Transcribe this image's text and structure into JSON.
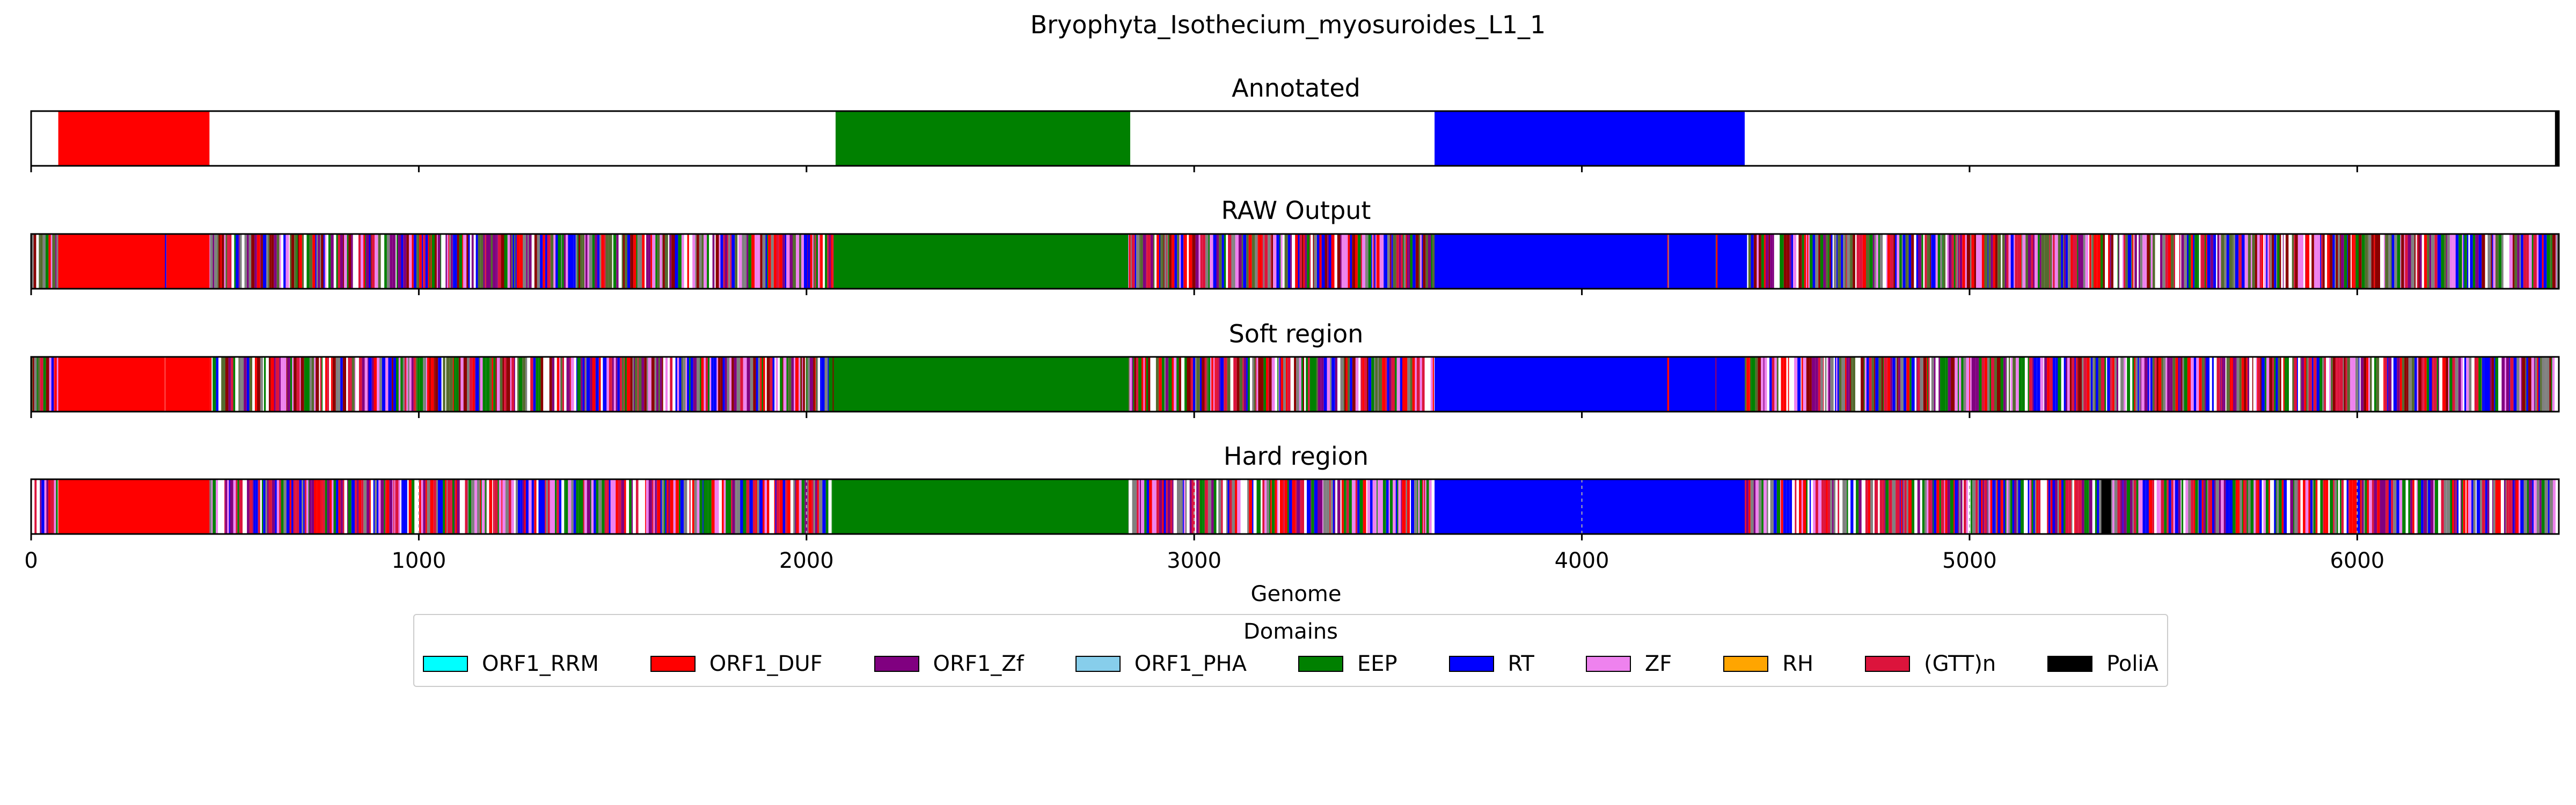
{
  "chart_data": {
    "type": "genome-track",
    "title": "Bryophyta_Isothecium_myosuroides_L1_1",
    "xlabel": "Genome",
    "xlim": [
      0,
      6520
    ],
    "xticks": [
      0,
      1000,
      2000,
      3000,
      4000,
      5000,
      6000
    ],
    "xtick_labels": [
      "0",
      "1000",
      "2000",
      "3000",
      "4000",
      "5000",
      "6000"
    ],
    "legend": {
      "title": "Domains",
      "placement": "bottom-center",
      "entries": [
        {
          "label": "ORF1_RRM",
          "color": "#00ffff"
        },
        {
          "label": "ORF1_DUF",
          "color": "#ff0000"
        },
        {
          "label": "ORF1_Zf",
          "color": "#800080"
        },
        {
          "label": "ORF1_PHA",
          "color": "#87ceeb"
        },
        {
          "label": "EEP",
          "color": "#008000"
        },
        {
          "label": "RT",
          "color": "#0000ff"
        },
        {
          "label": "ZF",
          "color": "#ee82ee"
        },
        {
          "label": "RH",
          "color": "#ffa500"
        },
        {
          "label": "(GTT)n",
          "color": "#dc143c"
        },
        {
          "label": "PoliA",
          "color": "#000000"
        }
      ]
    },
    "tracks": [
      {
        "title": "Annotated",
        "segments": [
          {
            "domain": "ORF1_DUF",
            "start": 70,
            "end": 460
          },
          {
            "domain": "EEP",
            "start": 2075,
            "end": 2835
          },
          {
            "domain": "RT",
            "start": 3620,
            "end": 4420
          },
          {
            "domain": "PoliA",
            "start": 6510,
            "end": 6520
          }
        ]
      },
      {
        "title": "RAW Output",
        "noise": true,
        "segments": [
          {
            "domain": "ORF1_DUF",
            "start": 70,
            "end": 345
          },
          {
            "domain": "ORF1_DUF",
            "start": 350,
            "end": 460
          },
          {
            "domain": "EEP",
            "start": 2070,
            "end": 2830
          },
          {
            "domain": "RT",
            "start": 3620,
            "end": 4220
          },
          {
            "domain": "RT",
            "start": 4225,
            "end": 4345
          },
          {
            "domain": "RT",
            "start": 4350,
            "end": 4420
          }
        ]
      },
      {
        "title": "Soft region",
        "noise": true,
        "segments": [
          {
            "domain": "ORF1_DUF",
            "start": 70,
            "end": 345
          },
          {
            "domain": "ORF1_DUF",
            "start": 350,
            "end": 460
          },
          {
            "domain": "EEP",
            "start": 2070,
            "end": 2830
          },
          {
            "domain": "RT",
            "start": 3620,
            "end": 4220
          },
          {
            "domain": "RT",
            "start": 4225,
            "end": 4345
          },
          {
            "domain": "RT",
            "start": 4350,
            "end": 4420
          }
        ]
      },
      {
        "title": "Hard region",
        "noise": true,
        "segments": [
          {
            "domain": "ORF1_DUF",
            "start": 70,
            "end": 460
          },
          {
            "domain": "EEP",
            "start": 2070,
            "end": 2830
          },
          {
            "domain": "RT",
            "start": 3620,
            "end": 4420
          },
          {
            "domain": "PoliA",
            "start": 5340,
            "end": 5365
          }
        ]
      }
    ]
  }
}
